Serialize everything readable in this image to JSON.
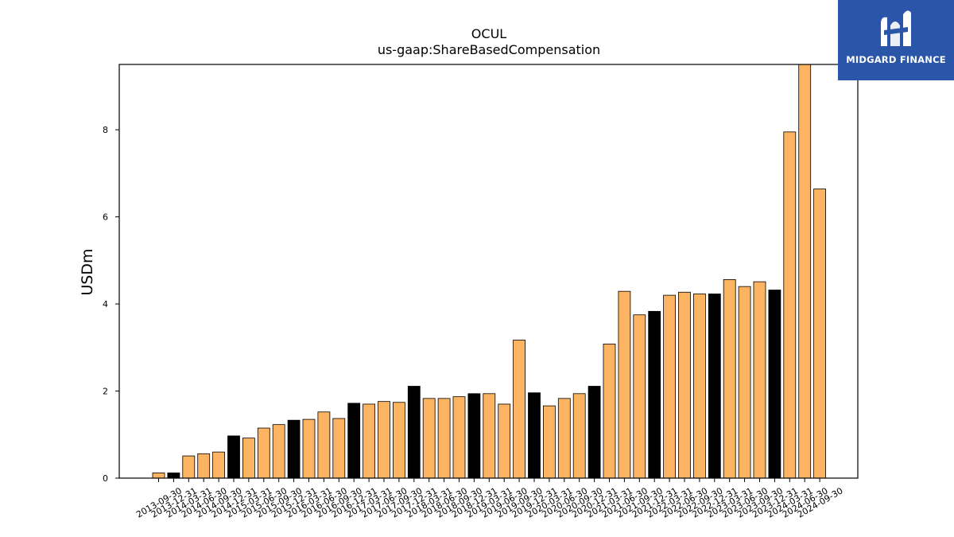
{
  "chart_data": {
    "type": "bar",
    "title": "OCUL",
    "subtitle": "us-gaap:ShareBasedCompensation",
    "xlabel": "",
    "ylabel": "USDm",
    "ylim": [
      0,
      9.5
    ],
    "yticks": [
      0,
      2,
      4,
      6,
      8
    ],
    "grid": false,
    "categories": [
      "2013-09-30",
      "2013-12-31",
      "2014-03-31",
      "2014-06-30",
      "2014-09-30",
      "2014-12-31",
      "2015-03-31",
      "2015-06-30",
      "2015-09-30",
      "2015-12-31",
      "2016-03-31",
      "2016-06-30",
      "2016-09-30",
      "2016-12-31",
      "2017-03-31",
      "2017-06-30",
      "2017-09-30",
      "2017-12-31",
      "2018-03-31",
      "2018-06-30",
      "2018-09-30",
      "2018-12-31",
      "2019-03-31",
      "2019-06-30",
      "2019-09-30",
      "2019-12-31",
      "2020-03-31",
      "2020-06-30",
      "2020-09-30",
      "2020-12-31",
      "2021-03-31",
      "2021-06-30",
      "2021-09-30",
      "2021-12-31",
      "2022-03-31",
      "2022-06-30",
      "2022-09-30",
      "2022-12-31",
      "2023-03-31",
      "2023-06-30",
      "2023-09-30",
      "2023-12-31",
      "2024-03-31",
      "2024-06-30",
      "2024-09-30"
    ],
    "values": [
      0.12,
      0.12,
      0.51,
      0.56,
      0.6,
      0.97,
      0.92,
      1.15,
      1.23,
      1.33,
      1.35,
      1.52,
      1.37,
      1.72,
      1.7,
      1.76,
      1.74,
      2.11,
      1.83,
      1.83,
      1.87,
      1.94,
      1.94,
      1.7,
      3.17,
      1.96,
      1.66,
      1.83,
      1.94,
      2.11,
      3.08,
      4.29,
      3.75,
      3.83,
      4.2,
      4.27,
      4.23,
      4.23,
      4.56,
      4.4,
      4.51,
      4.32,
      7.95,
      9.55,
      6.64
    ],
    "q4_flags": [
      false,
      true,
      false,
      false,
      false,
      true,
      false,
      false,
      false,
      true,
      false,
      false,
      false,
      true,
      false,
      false,
      false,
      true,
      false,
      false,
      false,
      true,
      false,
      false,
      false,
      true,
      false,
      false,
      false,
      true,
      false,
      false,
      false,
      true,
      false,
      false,
      false,
      true,
      false,
      false,
      false,
      true,
      false,
      false,
      false
    ],
    "colors": {
      "bar": "#fdb462",
      "bar_q4": "#000000",
      "edge": "#000000"
    }
  },
  "logo": {
    "brand_text": "MIDGARD FINANCE",
    "background": "#2a55a8"
  }
}
